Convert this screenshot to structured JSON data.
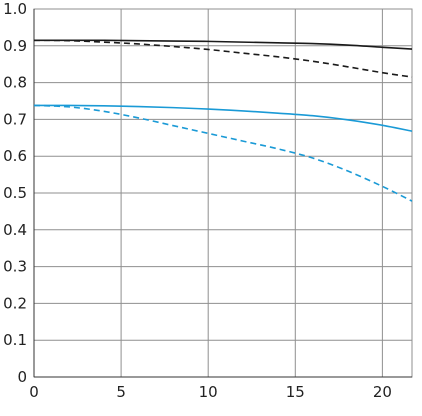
{
  "chart_data": {
    "type": "line",
    "title": "",
    "xlabel": "",
    "ylabel": "",
    "xlim": [
      0,
      21.7
    ],
    "ylim": [
      0,
      1.0
    ],
    "grid": true,
    "legend": "none",
    "x_ticks": [
      0,
      5,
      10,
      15,
      20
    ],
    "x_tick_labels": [
      "0",
      "5",
      "10",
      "15",
      "20"
    ],
    "y_ticks": [
      0,
      0.1,
      0.2,
      0.3,
      0.4,
      0.5,
      0.6,
      0.7,
      0.8,
      0.9,
      1.0
    ],
    "y_tick_labels": [
      "0",
      "0.1",
      "0.2",
      "0.3",
      "0.4",
      "0.5",
      "0.6",
      "0.7",
      "0.8",
      "0.9",
      "1.0"
    ],
    "series": [
      {
        "color": "#1a1a1a",
        "dash": "solid",
        "x": [
          0,
          2,
          4,
          6,
          8,
          10,
          12,
          14,
          16,
          18,
          20,
          21.7
        ],
        "y": [
          0.915,
          0.915,
          0.915,
          0.914,
          0.913,
          0.912,
          0.91,
          0.908,
          0.906,
          0.902,
          0.896,
          0.891
        ]
      },
      {
        "color": "#1a1a1a",
        "dash": "dashed",
        "x": [
          0,
          2,
          4,
          6,
          8,
          10,
          12,
          14,
          16,
          18,
          20,
          21.7
        ],
        "y": [
          0.915,
          0.914,
          0.91,
          0.905,
          0.898,
          0.89,
          0.88,
          0.87,
          0.858,
          0.843,
          0.827,
          0.815
        ]
      },
      {
        "color": "#1a9ad6",
        "dash": "solid",
        "x": [
          0,
          2,
          4,
          6,
          8,
          10,
          12,
          14,
          16,
          18,
          20,
          21.7
        ],
        "y": [
          0.738,
          0.738,
          0.737,
          0.735,
          0.732,
          0.728,
          0.723,
          0.717,
          0.71,
          0.699,
          0.684,
          0.668
        ]
      },
      {
        "color": "#1a9ad6",
        "dash": "dashed",
        "x": [
          0,
          2,
          4,
          6,
          8,
          10,
          12,
          14,
          16,
          18,
          20,
          21.7
        ],
        "y": [
          0.738,
          0.734,
          0.722,
          0.704,
          0.683,
          0.662,
          0.641,
          0.62,
          0.595,
          0.56,
          0.518,
          0.478
        ]
      }
    ]
  }
}
